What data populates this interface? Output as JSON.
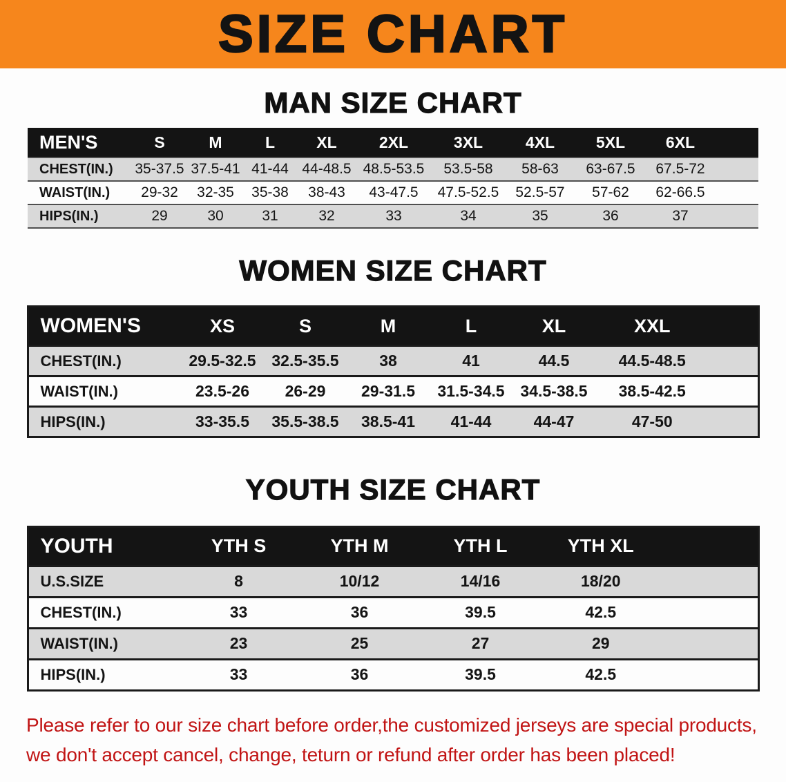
{
  "banner": {
    "title": "SIZE CHART"
  },
  "colors": {
    "banner_orange": "#F6861C",
    "table_header_black": "#141414",
    "row_gray": "#D9D9D9",
    "disclaimer_red": "#C11414"
  },
  "sections": [
    {
      "id": "men",
      "heading": "MAN SIZE CHART",
      "table": {
        "header": [
          "MEN'S",
          "S",
          "M",
          "L",
          "XL",
          "2XL",
          "3XL",
          "4XL",
          "5XL",
          "6XL"
        ],
        "rows": [
          [
            "CHEST(IN.)",
            "35-37.5",
            "37.5-41",
            "41-44",
            "44-48.5",
            "48.5-53.5",
            "53.5-58",
            "58-63",
            "63-67.5",
            "67.5-72"
          ],
          [
            "WAIST(IN.)",
            "29-32",
            "32-35",
            "35-38",
            "38-43",
            "43-47.5",
            "47.5-52.5",
            "52.5-57",
            "57-62",
            "62-66.5"
          ],
          [
            "HIPS(IN.)",
            "29",
            "30",
            "31",
            "32",
            "33",
            "34",
            "35",
            "36",
            "37"
          ]
        ]
      }
    },
    {
      "id": "women",
      "heading": "WOMEN SIZE CHART",
      "table": {
        "header": [
          "WOMEN'S",
          "XS",
          "S",
          "M",
          "L",
          "XL",
          "XXL"
        ],
        "rows": [
          [
            "CHEST(IN.)",
            "29.5-32.5",
            "32.5-35.5",
            "38",
            "41",
            "44.5",
            "44.5-48.5"
          ],
          [
            "WAIST(IN.)",
            "23.5-26",
            "26-29",
            "29-31.5",
            "31.5-34.5",
            "34.5-38.5",
            "38.5-42.5"
          ],
          [
            "HIPS(IN.)",
            "33-35.5",
            "35.5-38.5",
            "38.5-41",
            "41-44",
            "44-47",
            "47-50"
          ]
        ]
      }
    },
    {
      "id": "youth",
      "heading": "YOUTH SIZE CHART",
      "table": {
        "header": [
          "YOUTH",
          "YTH S",
          "YTH M",
          "YTH L",
          "YTH XL"
        ],
        "rows": [
          [
            "U.S.SIZE",
            "8",
            "10/12",
            "14/16",
            "18/20"
          ],
          [
            "CHEST(IN.)",
            "33",
            "36",
            "39.5",
            "42.5"
          ],
          [
            "WAIST(IN.)",
            "23",
            "25",
            "27",
            "29"
          ],
          [
            "HIPS(IN.)",
            "33",
            "36",
            "39.5",
            "42.5"
          ]
        ]
      }
    }
  ],
  "disclaimer": {
    "line1": "Please refer to our size chart before order,the customized jerseys are special products,",
    "line2": "we don't accept cancel, change, teturn or refund after order has been placed!"
  }
}
